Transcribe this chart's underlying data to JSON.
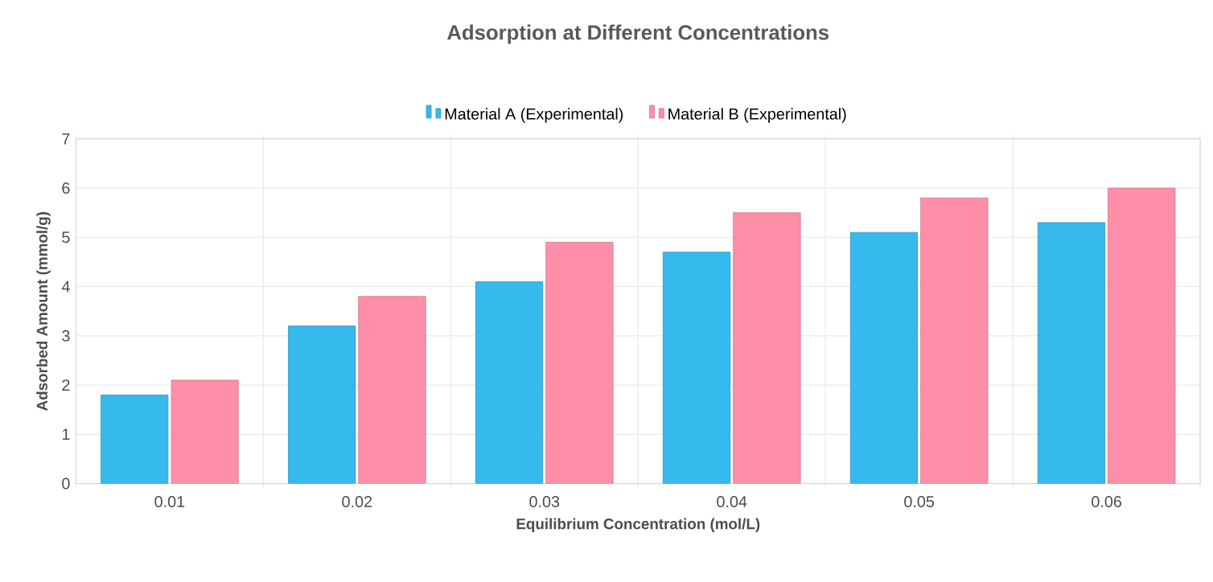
{
  "chart_data": {
    "type": "bar",
    "title": "Adsorption at Different Concentrations",
    "xlabel": "Equilibrium Concentration (mol/L)",
    "ylabel": "Adsorbed Amount (mmol/g)",
    "categories": [
      "0.01",
      "0.02",
      "0.03",
      "0.04",
      "0.05",
      "0.06"
    ],
    "series": [
      {
        "name": "Material A (Experimental)",
        "color": "#36b9ec",
        "values": [
          1.8,
          3.2,
          4.1,
          4.7,
          5.1,
          5.3
        ]
      },
      {
        "name": "Material B (Experimental)",
        "color": "#ff8fa8",
        "values": [
          2.1,
          3.8,
          4.9,
          5.5,
          5.8,
          6.0
        ]
      }
    ],
    "ylim": [
      0,
      7
    ],
    "yticks": [
      0,
      1,
      2,
      3,
      4,
      5,
      6,
      7
    ],
    "grid": true,
    "legend": "top"
  }
}
